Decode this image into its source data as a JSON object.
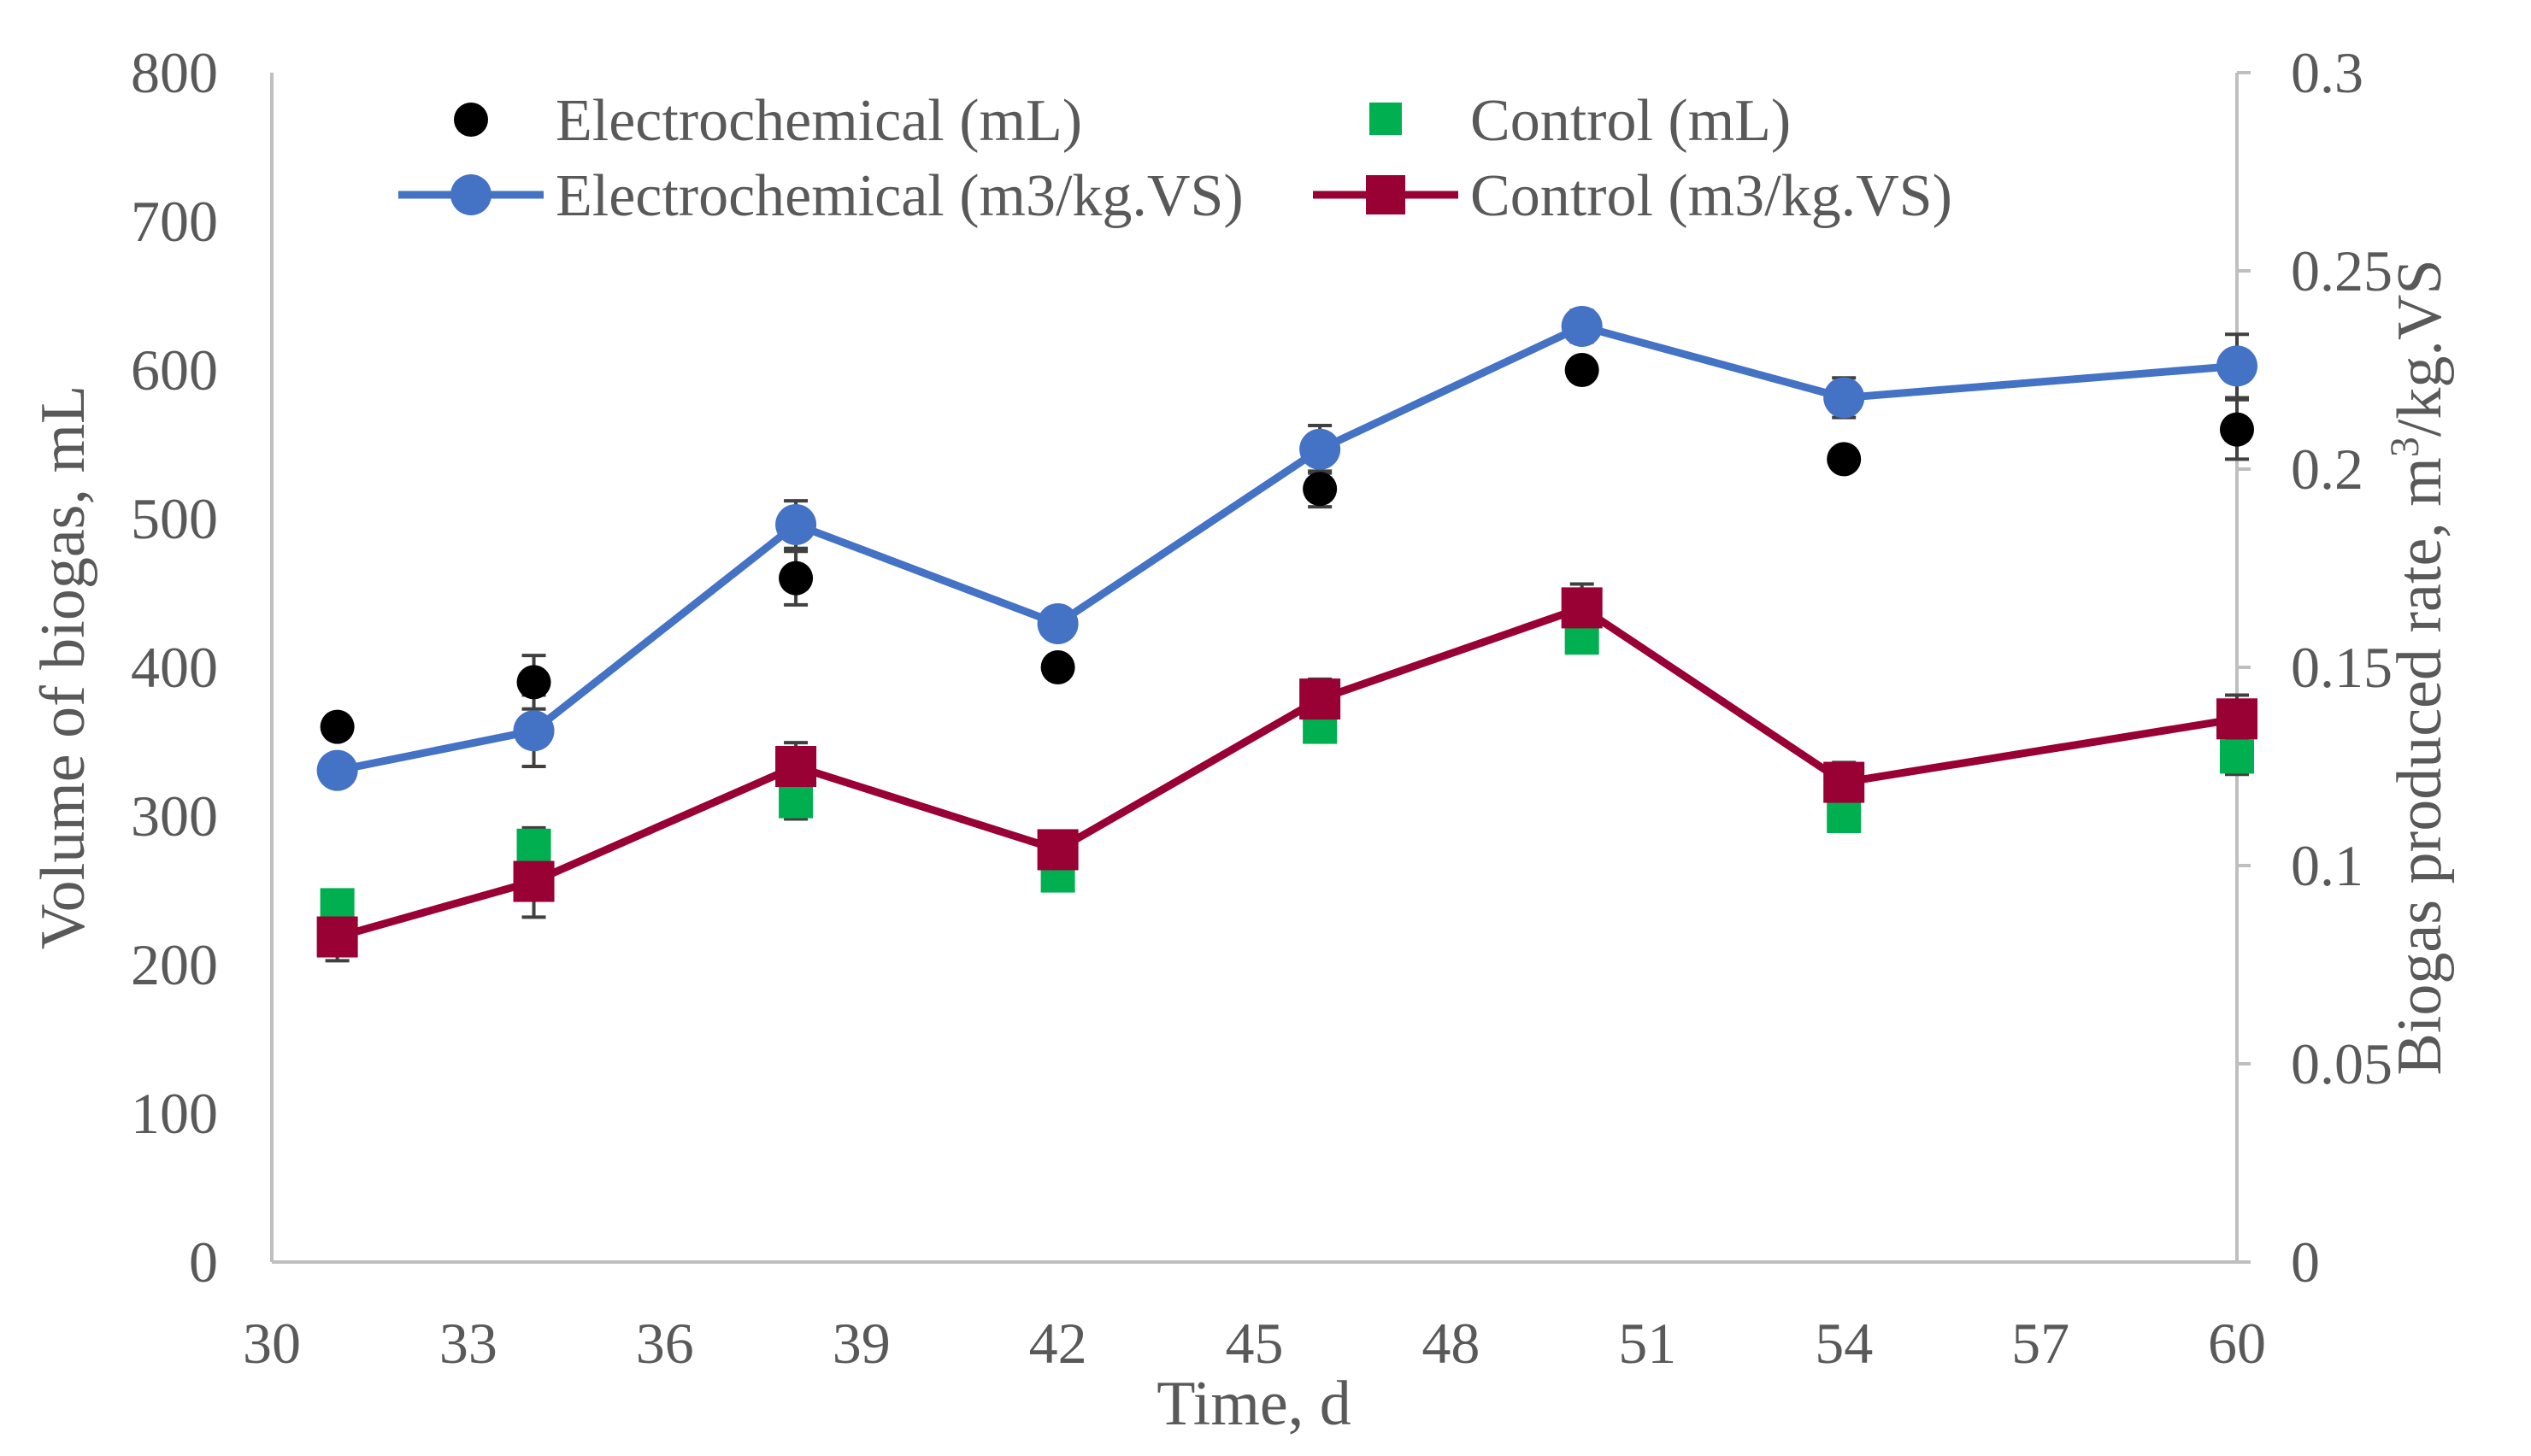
{
  "chart_data": {
    "type": "line+scatter",
    "xlabel": "Time, d",
    "ylabel_left": "Volume of biogas, mL",
    "ylabel_right": "Biogas produced rate, m³/kg.VS",
    "ylabel_right_parts": [
      "Biogas produced rate, m",
      "3",
      "/kg.VS"
    ],
    "x_ticks": [
      30,
      33,
      36,
      39,
      42,
      45,
      48,
      51,
      54,
      57,
      60
    ],
    "xlim": [
      30,
      60
    ],
    "y_left_ticks": [
      0,
      100,
      200,
      300,
      400,
      500,
      600,
      700,
      800
    ],
    "ylim_left": [
      0,
      800
    ],
    "y_right_ticks": [
      "0",
      "0.05",
      "0.1",
      "0.15",
      "0.2",
      "0.25",
      "0.3"
    ],
    "ylim_right": [
      0,
      0.3
    ],
    "x": [
      31,
      34,
      38,
      42,
      46,
      50,
      54,
      60
    ],
    "series": [
      {
        "name": "Electrochemical (mL)",
        "axis": "left",
        "kind": "scatter",
        "marker": "circle",
        "color": "#000000",
        "values": [
          360,
          390,
          460,
          400,
          520,
          600,
          540,
          560
        ],
        "errors": [
          0,
          18,
          18,
          0,
          12,
          0,
          0,
          20
        ]
      },
      {
        "name": "Control (mL)",
        "axis": "left",
        "kind": "scatter",
        "marker": "square",
        "color": "#00b050",
        "values": [
          240,
          280,
          310,
          260,
          360,
          420,
          300,
          340
        ],
        "errors": [
          0,
          12,
          12,
          0,
          0,
          0,
          0,
          12
        ]
      },
      {
        "name": "Electrochemical (m3/kg.VS)",
        "axis": "right",
        "kind": "line",
        "marker": "circle",
        "color": "#4472c4",
        "values": [
          0.124,
          0.134,
          0.186,
          0.161,
          0.205,
          0.236,
          0.218,
          0.226
        ],
        "errors": [
          0.003,
          0.009,
          0.006,
          0.003,
          0.006,
          0.004,
          0.005,
          0.008
        ]
      },
      {
        "name": "Control (m3/kg.VS)",
        "axis": "right",
        "kind": "line",
        "marker": "square",
        "color": "#990033",
        "values": [
          0.082,
          0.096,
          0.125,
          0.104,
          0.142,
          0.165,
          0.121,
          0.137
        ],
        "errors": [
          0.006,
          0.009,
          0.006,
          0.004,
          0.005,
          0.006,
          0.005,
          0.006
        ]
      }
    ],
    "legend_placement": "top-left",
    "grid": false
  }
}
